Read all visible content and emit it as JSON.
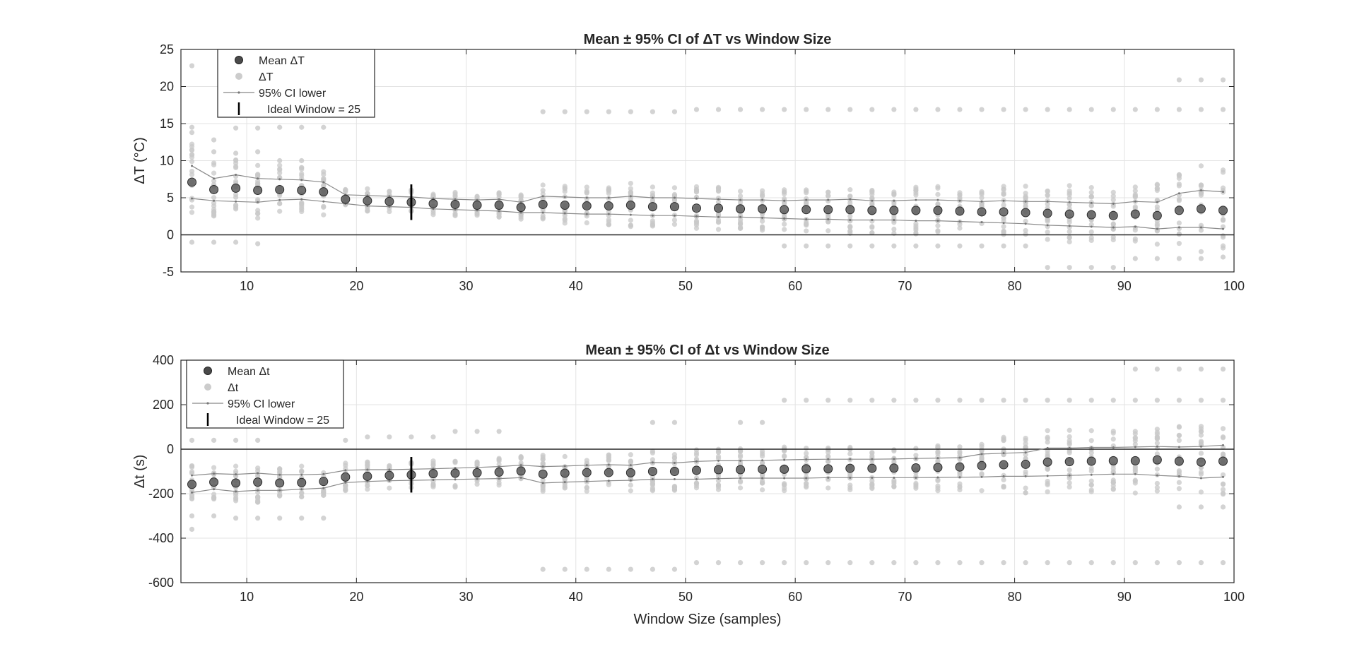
{
  "figure": {
    "xlabel": "Window Size (samples)"
  },
  "chart_data": [
    {
      "type": "scatter",
      "title": "Mean ± 95% CI of ΔT vs Window Size",
      "xlabel": "",
      "ylabel": "ΔT (°C)",
      "xlim": [
        4,
        100
      ],
      "ylim": [
        -5,
        25
      ],
      "xticks": [
        10,
        20,
        30,
        40,
        50,
        60,
        70,
        80,
        90,
        100
      ],
      "yticks": [
        -5,
        0,
        5,
        10,
        15,
        20,
        25
      ],
      "grid": true,
      "legend_position": "top-left",
      "legend": [
        "Mean ΔT",
        "ΔT",
        "95% CI lower",
        "Ideal Window = 25"
      ],
      "ideal_window": {
        "x": 25,
        "low": 2.0,
        "high": 6.8
      },
      "zero_line": 0,
      "x": [
        5,
        7,
        9,
        11,
        13,
        15,
        17,
        19,
        21,
        23,
        25,
        27,
        29,
        31,
        33,
        35,
        37,
        39,
        41,
        43,
        45,
        47,
        49,
        51,
        53,
        55,
        57,
        59,
        61,
        63,
        65,
        67,
        69,
        71,
        73,
        75,
        77,
        79,
        81,
        83,
        85,
        87,
        89,
        91,
        93,
        95,
        97,
        99
      ],
      "mean": [
        7.1,
        6.1,
        6.3,
        6.0,
        6.1,
        6.0,
        5.8,
        4.8,
        4.6,
        4.5,
        4.4,
        4.2,
        4.1,
        4.0,
        4.0,
        3.7,
        4.1,
        4.0,
        3.9,
        3.9,
        4.0,
        3.8,
        3.8,
        3.6,
        3.6,
        3.5,
        3.5,
        3.4,
        3.4,
        3.4,
        3.4,
        3.3,
        3.3,
        3.3,
        3.3,
        3.2,
        3.1,
        3.1,
        3.0,
        2.9,
        2.8,
        2.7,
        2.6,
        2.8,
        2.6,
        3.3,
        3.5,
        3.3
      ],
      "ci_lower": [
        4.9,
        4.6,
        4.5,
        4.4,
        4.7,
        4.8,
        4.5,
        4.2,
        3.9,
        3.8,
        3.7,
        3.5,
        3.4,
        3.3,
        3.2,
        3.0,
        3.0,
        2.9,
        2.8,
        2.8,
        2.7,
        2.6,
        2.6,
        2.5,
        2.4,
        2.4,
        2.3,
        2.2,
        2.1,
        2.1,
        2.0,
        2.0,
        2.0,
        1.9,
        1.9,
        1.8,
        1.7,
        1.6,
        1.5,
        1.3,
        1.2,
        1.1,
        1.0,
        1.1,
        0.8,
        1.0,
        1.0,
        0.8
      ],
      "ci_upper": [
        9.3,
        7.6,
        8.1,
        7.6,
        7.5,
        7.4,
        7.1,
        5.4,
        5.3,
        5.2,
        5.1,
        4.9,
        4.8,
        4.7,
        4.8,
        4.4,
        5.2,
        5.1,
        5.0,
        5.0,
        5.2,
        5.0,
        5.0,
        4.9,
        4.8,
        4.7,
        4.7,
        4.6,
        4.7,
        4.7,
        4.8,
        4.6,
        4.6,
        4.7,
        4.7,
        4.6,
        4.5,
        4.6,
        4.5,
        4.5,
        4.4,
        4.3,
        4.2,
        4.5,
        4.4,
        5.6,
        6.0,
        5.8
      ],
      "outliers_high": [
        [
          5,
          22.8
        ],
        [
          5,
          14.5
        ],
        [
          5,
          13.8
        ],
        [
          7,
          12.8
        ],
        [
          7,
          11.2
        ],
        [
          9,
          14.4
        ],
        [
          9,
          11.0
        ],
        [
          11,
          14.4
        ],
        [
          11,
          11.2
        ],
        [
          13,
          14.5
        ],
        [
          13,
          10.0
        ],
        [
          15,
          14.5
        ],
        [
          15,
          10.0
        ],
        [
          17,
          14.5
        ],
        [
          37,
          16.6
        ],
        [
          39,
          16.6
        ],
        [
          41,
          16.6
        ],
        [
          43,
          16.6
        ],
        [
          45,
          16.6
        ],
        [
          47,
          16.6
        ],
        [
          49,
          16.6
        ],
        [
          51,
          16.9
        ],
        [
          53,
          16.9
        ],
        [
          55,
          16.9
        ],
        [
          57,
          16.9
        ],
        [
          59,
          16.9
        ],
        [
          61,
          16.9
        ],
        [
          63,
          16.9
        ],
        [
          65,
          16.9
        ],
        [
          67,
          16.9
        ],
        [
          69,
          16.9
        ],
        [
          71,
          16.9
        ],
        [
          73,
          16.9
        ],
        [
          75,
          16.9
        ],
        [
          77,
          16.9
        ],
        [
          79,
          16.9
        ],
        [
          81,
          16.9
        ],
        [
          83,
          16.9
        ],
        [
          85,
          16.9
        ],
        [
          87,
          16.9
        ],
        [
          89,
          16.9
        ],
        [
          91,
          16.9
        ],
        [
          93,
          16.9
        ],
        [
          95,
          16.9
        ],
        [
          97,
          16.9
        ],
        [
          99,
          16.9
        ],
        [
          95,
          20.9
        ],
        [
          97,
          20.9
        ],
        [
          99,
          20.9
        ]
      ],
      "outliers_low": [
        [
          5,
          -1.0
        ],
        [
          7,
          -1.0
        ],
        [
          9,
          -1.0
        ],
        [
          11,
          -1.2
        ],
        [
          59,
          -1.5
        ],
        [
          61,
          -1.5
        ],
        [
          63,
          -1.5
        ],
        [
          65,
          -1.5
        ],
        [
          67,
          -1.5
        ],
        [
          69,
          -1.5
        ],
        [
          71,
          -1.5
        ],
        [
          73,
          -1.5
        ],
        [
          75,
          -1.5
        ],
        [
          77,
          -1.5
        ],
        [
          79,
          -1.5
        ],
        [
          81,
          -1.5
        ],
        [
          83,
          -4.4
        ],
        [
          85,
          -4.4
        ],
        [
          87,
          -4.4
        ],
        [
          89,
          -4.4
        ],
        [
          91,
          -3.2
        ],
        [
          93,
          -3.2
        ],
        [
          95,
          -3.2
        ],
        [
          97,
          -3.2
        ],
        [
          99,
          -3.0
        ]
      ]
    },
    {
      "type": "scatter",
      "title": "Mean ± 95% CI of Δt vs Window Size",
      "xlabel": "Window Size (samples)",
      "ylabel": "Δt (s)",
      "xlim": [
        4,
        100
      ],
      "ylim": [
        -600,
        400
      ],
      "xticks": [
        10,
        20,
        30,
        40,
        50,
        60,
        70,
        80,
        90,
        100
      ],
      "yticks": [
        -600,
        -400,
        -200,
        0,
        200,
        400
      ],
      "grid": true,
      "legend_position": "top-left",
      "legend": [
        "Mean Δt",
        "Δt",
        "95% CI lower",
        "Ideal Window = 25"
      ],
      "ideal_window": {
        "x": 25,
        "low": -195,
        "high": -35
      },
      "zero_line": 0,
      "x": [
        5,
        7,
        9,
        11,
        13,
        15,
        17,
        19,
        21,
        23,
        25,
        27,
        29,
        31,
        33,
        35,
        37,
        39,
        41,
        43,
        45,
        47,
        49,
        51,
        53,
        55,
        57,
        59,
        61,
        63,
        65,
        67,
        69,
        71,
        73,
        75,
        77,
        79,
        81,
        83,
        85,
        87,
        89,
        91,
        93,
        95,
        97,
        99
      ],
      "mean": [
        -158,
        -148,
        -152,
        -148,
        -152,
        -150,
        -145,
        -125,
        -122,
        -118,
        -115,
        -110,
        -108,
        -106,
        -103,
        -98,
        -112,
        -108,
        -105,
        -105,
        -106,
        -100,
        -100,
        -95,
        -92,
        -92,
        -90,
        -90,
        -88,
        -88,
        -86,
        -86,
        -85,
        -84,
        -82,
        -80,
        -74,
        -70,
        -68,
        -58,
        -56,
        -54,
        -52,
        -52,
        -48,
        -54,
        -58,
        -54
      ],
      "ci_lower": [
        -195,
        -180,
        -190,
        -185,
        -185,
        -180,
        -175,
        -150,
        -145,
        -142,
        -140,
        -138,
        -136,
        -134,
        -132,
        -128,
        -152,
        -148,
        -145,
        -142,
        -140,
        -135,
        -135,
        -135,
        -132,
        -130,
        -130,
        -130,
        -130,
        -128,
        -128,
        -128,
        -128,
        -128,
        -127,
        -126,
        -125,
        -122,
        -122,
        -120,
        -118,
        -115,
        -112,
        -112,
        -118,
        -122,
        -130,
        -125
      ],
      "ci_upper": [
        -118,
        -110,
        -113,
        -108,
        -115,
        -115,
        -112,
        -95,
        -92,
        -92,
        -90,
        -88,
        -85,
        -82,
        -78,
        -72,
        -78,
        -76,
        -72,
        -70,
        -72,
        -60,
        -62,
        -55,
        -52,
        -52,
        -50,
        -48,
        -46,
        -45,
        -45,
        -45,
        -44,
        -42,
        -40,
        -38,
        -22,
        -18,
        -15,
        5,
        5,
        8,
        8,
        10,
        12,
        10,
        12,
        18
      ],
      "outliers_high": [
        [
          5,
          40
        ],
        [
          7,
          40
        ],
        [
          9,
          40
        ],
        [
          11,
          40
        ],
        [
          19,
          40
        ],
        [
          21,
          55
        ],
        [
          23,
          55
        ],
        [
          25,
          55
        ],
        [
          27,
          55
        ],
        [
          29,
          80
        ],
        [
          31,
          80
        ],
        [
          33,
          80
        ],
        [
          47,
          120
        ],
        [
          49,
          120
        ],
        [
          55,
          120
        ],
        [
          57,
          120
        ],
        [
          59,
          220
        ],
        [
          61,
          220
        ],
        [
          63,
          220
        ],
        [
          65,
          220
        ],
        [
          67,
          220
        ],
        [
          69,
          220
        ],
        [
          71,
          220
        ],
        [
          73,
          220
        ],
        [
          75,
          220
        ],
        [
          77,
          220
        ],
        [
          79,
          220
        ],
        [
          81,
          220
        ],
        [
          83,
          220
        ],
        [
          85,
          220
        ],
        [
          87,
          220
        ],
        [
          89,
          220
        ],
        [
          91,
          220
        ],
        [
          93,
          220
        ],
        [
          95,
          220
        ],
        [
          97,
          220
        ],
        [
          99,
          220
        ],
        [
          91,
          360
        ],
        [
          93,
          360
        ],
        [
          95,
          360
        ],
        [
          97,
          360
        ],
        [
          99,
          360
        ]
      ],
      "outliers_low": [
        [
          5,
          -300
        ],
        [
          5,
          -360
        ],
        [
          7,
          -300
        ],
        [
          9,
          -310
        ],
        [
          11,
          -310
        ],
        [
          13,
          -310
        ],
        [
          15,
          -310
        ],
        [
          17,
          -310
        ],
        [
          37,
          -540
        ],
        [
          39,
          -540
        ],
        [
          41,
          -540
        ],
        [
          43,
          -540
        ],
        [
          45,
          -540
        ],
        [
          47,
          -540
        ],
        [
          49,
          -540
        ],
        [
          51,
          -510
        ],
        [
          53,
          -510
        ],
        [
          55,
          -510
        ],
        [
          57,
          -510
        ],
        [
          59,
          -510
        ],
        [
          61,
          -510
        ],
        [
          63,
          -510
        ],
        [
          65,
          -510
        ],
        [
          67,
          -510
        ],
        [
          69,
          -510
        ],
        [
          71,
          -510
        ],
        [
          73,
          -510
        ],
        [
          75,
          -510
        ],
        [
          77,
          -510
        ],
        [
          79,
          -510
        ],
        [
          81,
          -510
        ],
        [
          83,
          -510
        ],
        [
          85,
          -510
        ],
        [
          87,
          -510
        ],
        [
          89,
          -510
        ],
        [
          91,
          -510
        ],
        [
          93,
          -510
        ],
        [
          95,
          -510
        ],
        [
          97,
          -510
        ],
        [
          99,
          -510
        ],
        [
          95,
          -260
        ],
        [
          97,
          -260
        ],
        [
          99,
          -260
        ]
      ]
    }
  ]
}
